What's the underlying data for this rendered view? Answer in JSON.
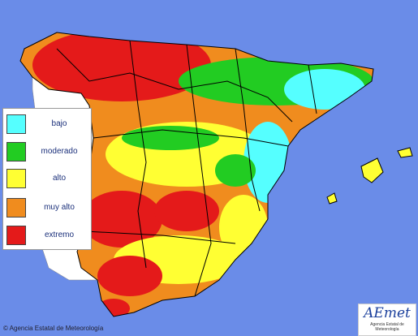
{
  "legend": {
    "items": [
      "bajo",
      "moderado",
      "alto",
      "muy alto",
      "extremo"
    ]
  },
  "footer": {
    "copyright": "© Agencia Estatal de Meteorología"
  },
  "logo": {
    "name": "AEmet",
    "subtitle": "Agencia Estatal de Meteorología"
  }
}
